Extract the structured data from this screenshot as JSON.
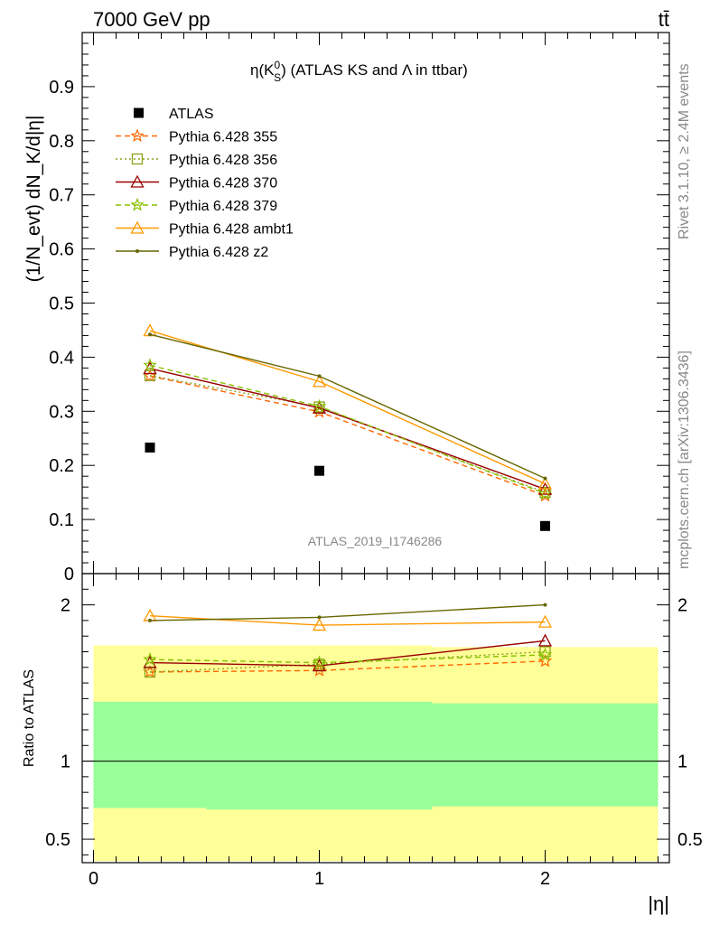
{
  "header": {
    "left_label": "7000 GeV pp",
    "right_label": "tt̄"
  },
  "side_labels": {
    "rivet": "Rivet 3.1.10, ≥ 2.4M events",
    "mcplots": "mcplots.cern.ch [arXiv:1306.3436]"
  },
  "watermark": "ATLAS_2019_I1746286",
  "top_panel": {
    "title_prefix": "η(K",
    "title_super": "0",
    "title_sub": "S",
    "title_suffix": ") (ATLAS KS and Λ in ttbar)",
    "ylabel": "(1/N_evt) dN_K/d|η|",
    "ylim": [
      0,
      1.0
    ],
    "yticks": [
      "0",
      "0.1",
      "0.2",
      "0.3",
      "0.4",
      "0.5",
      "0.6",
      "0.7",
      "0.8",
      "0.9"
    ]
  },
  "ratio_panel": {
    "ylabel": "Ratio to ATLAS",
    "ylim": [
      0.35,
      2.2
    ],
    "yticks": [
      "0.5",
      "1",
      "2"
    ]
  },
  "xaxis": {
    "label": "|η|",
    "xlim": [
      -0.05,
      2.55
    ],
    "xticks": [
      "0",
      "1",
      "2"
    ]
  },
  "legend": [
    {
      "label": "ATLAS"
    },
    {
      "label": "Pythia 6.428 355"
    },
    {
      "label": "Pythia 6.428 356"
    },
    {
      "label": "Pythia 6.428 370"
    },
    {
      "label": "Pythia 6.428 379"
    },
    {
      "label": "Pythia 6.428 ambt1"
    },
    {
      "label": "Pythia 6.428 z2"
    }
  ],
  "chart_data": {
    "type": "line",
    "x": [
      0.25,
      1.0,
      2.0
    ],
    "bin_edges": [
      0,
      0.5,
      1.5,
      2.5
    ],
    "data": {
      "name": "ATLAS",
      "values": [
        0.233,
        0.19,
        0.088
      ],
      "color": "#000000"
    },
    "series": [
      {
        "name": "Pythia 6.428 355",
        "values": [
          0.365,
          0.299,
          0.144
        ],
        "ratio": [
          1.57,
          1.58,
          1.64
        ],
        "color": "#ff6600",
        "dash": "6,4",
        "marker": "star"
      },
      {
        "name": "Pythia 6.428 356",
        "values": [
          0.366,
          0.308,
          0.15
        ],
        "ratio": [
          1.57,
          1.62,
          1.7
        ],
        "color": "#8aa31d",
        "dash": "2,3",
        "marker": "square"
      },
      {
        "name": "Pythia 6.428 370",
        "values": [
          0.379,
          0.306,
          0.156
        ],
        "ratio": [
          1.63,
          1.61,
          1.77
        ],
        "color": "#990000",
        "dash": "",
        "marker": "triangle"
      },
      {
        "name": "Pythia 6.428 379",
        "values": [
          0.385,
          0.309,
          0.148
        ],
        "ratio": [
          1.65,
          1.63,
          1.68
        ],
        "color": "#88c000",
        "dash": "6,4",
        "marker": "star"
      },
      {
        "name": "Pythia 6.428 ambt1",
        "values": [
          0.449,
          0.355,
          0.166
        ],
        "ratio": [
          1.93,
          1.87,
          1.89
        ],
        "color": "#ff9900",
        "dash": "",
        "marker": "triangle"
      },
      {
        "name": "Pythia 6.428 z2",
        "values": [
          0.442,
          0.365,
          0.176
        ],
        "ratio": [
          1.9,
          1.92,
          2.0
        ],
        "color": "#666600",
        "dash": "",
        "marker": "dot"
      }
    ],
    "bands": {
      "inner_color": "#99ff99",
      "outer_color": "#ffff99",
      "inner": [
        [
          0.7,
          1.38
        ],
        [
          0.69,
          1.38
        ],
        [
          0.71,
          1.37
        ]
      ],
      "outer": [
        [
          0.36,
          1.74
        ],
        [
          0.36,
          1.74
        ],
        [
          0.36,
          1.73
        ]
      ]
    }
  }
}
